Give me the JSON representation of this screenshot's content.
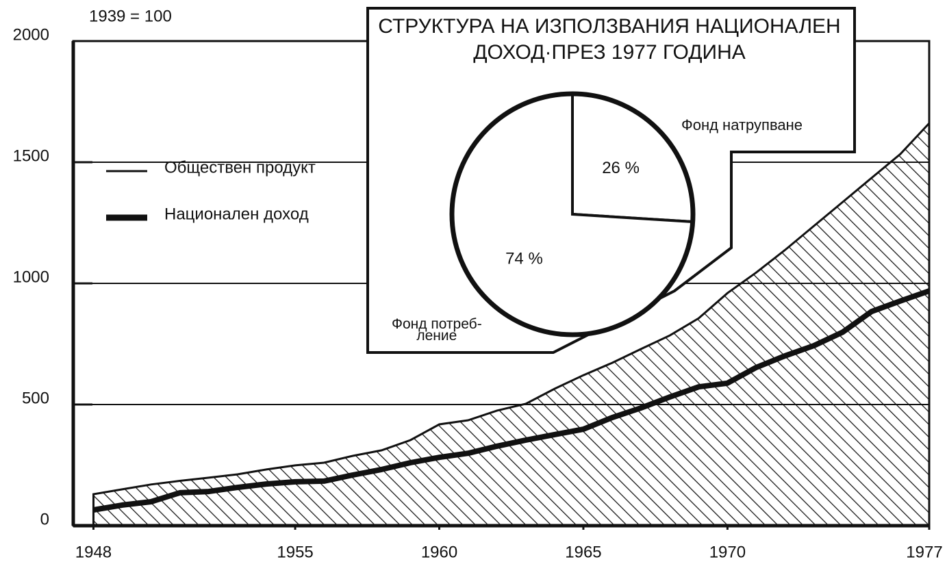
{
  "chart_data": [
    {
      "type": "line",
      "ylabel": "1939 = 100",
      "x": [
        1948,
        1949,
        1950,
        1951,
        1952,
        1953,
        1954,
        1955,
        1956,
        1957,
        1958,
        1959,
        1960,
        1961,
        1962,
        1963,
        1964,
        1965,
        1966,
        1967,
        1968,
        1969,
        1970,
        1971,
        1972,
        1973,
        1974,
        1975,
        1976,
        1977
      ],
      "series": [
        {
          "name": "Обществен продукт",
          "color": "#111111",
          "area": true,
          "values": [
            130,
            150,
            170,
            185,
            198,
            212,
            232,
            249,
            260,
            288,
            311,
            353,
            418,
            435,
            475,
            503,
            565,
            621,
            672,
            729,
            785,
            856,
            960,
            1045,
            1138,
            1237,
            1336,
            1435,
            1534,
            1661
          ]
        },
        {
          "name": "Национален доход",
          "color": "#111111",
          "values": [
            65,
            85,
            99,
            136,
            141,
            158,
            172,
            181,
            184,
            209,
            232,
            260,
            282,
            299,
            328,
            353,
            376,
            398,
            446,
            486,
            531,
            573,
            588,
            653,
            701,
            743,
            799,
            884,
            927,
            969
          ]
        }
      ],
      "xlim": [
        1947.3,
        1977
      ],
      "xticks": [
        1948,
        1955,
        1960,
        1965,
        1970,
        1977
      ],
      "ylim": [
        0,
        2000
      ],
      "yticks": [
        0,
        500,
        1000,
        1500,
        2000
      ],
      "grid": true
    },
    {
      "type": "pie",
      "title": "СТРУКТУРА НА ИЗПОЛЗВАНИЯ НАЦИОНАЛЕН\nДОХОД·ПРЕЗ 1977 ГОДИНА",
      "categories": [
        "Фонд натрупване",
        "Фонд потреб-\nление"
      ],
      "values": [
        26,
        74
      ],
      "value_labels": [
        "26 %",
        "74 %"
      ]
    }
  ]
}
